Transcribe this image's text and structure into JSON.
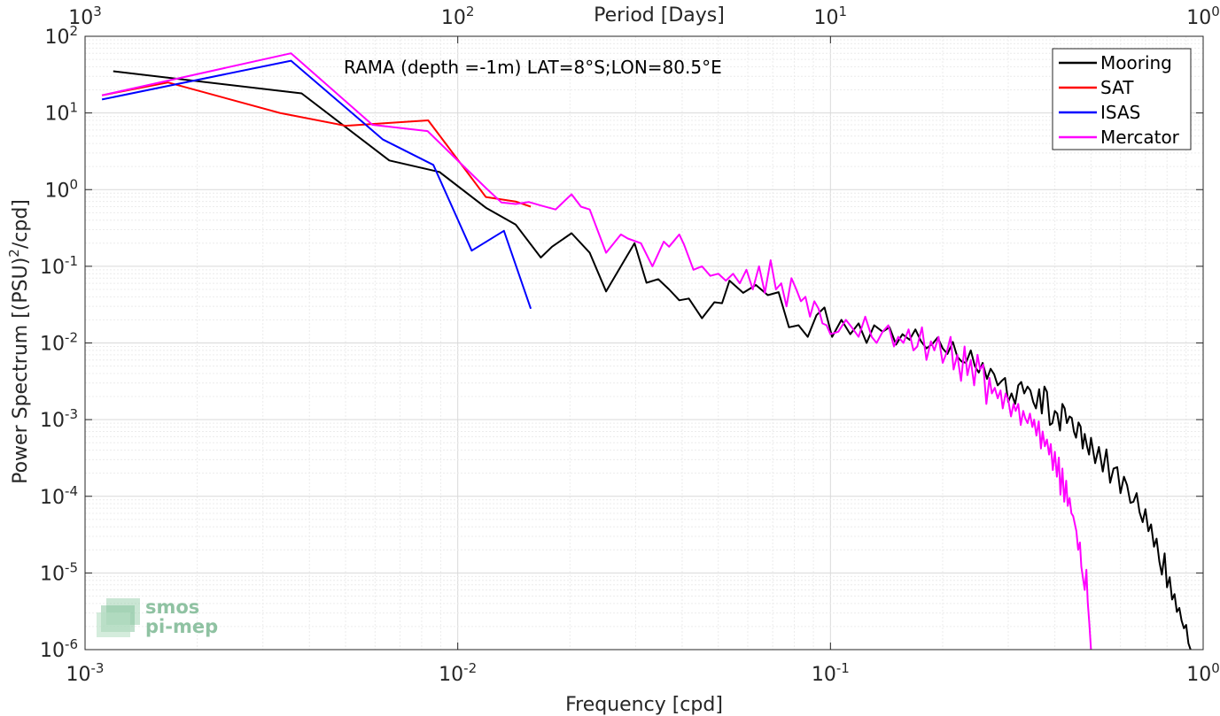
{
  "chart_data": {
    "type": "line",
    "xscale": "log",
    "yscale": "log",
    "xlim": [
      0.001,
      1
    ],
    "ylim": [
      1e-06,
      100
    ],
    "grid": true,
    "minor_grid": true,
    "xlabel": "Frequency [cpd]",
    "ylabel_prefix": "Power Spectrum [(PSU)",
    "ylabel_sup": "2",
    "ylabel_suffix": "/cpd]",
    "top_axis": {
      "label": "Period [Days]",
      "ticks": [
        {
          "base": "10",
          "exp": "3",
          "at_x": 0.001
        },
        {
          "base": "10",
          "exp": "2",
          "at_x": 0.01
        },
        {
          "base": "10",
          "exp": "1",
          "at_x": 0.1
        },
        {
          "base": "10",
          "exp": "0",
          "at_x": 1
        }
      ]
    },
    "x_ticks": [
      {
        "base": "10",
        "exp": "-3",
        "value": 0.001
      },
      {
        "base": "10",
        "exp": "-2",
        "value": 0.01
      },
      {
        "base": "10",
        "exp": "-1",
        "value": 0.1
      },
      {
        "base": "10",
        "exp": "0",
        "value": 1
      }
    ],
    "y_ticks": [
      {
        "base": "10",
        "exp": "2",
        "value": 100
      },
      {
        "base": "10",
        "exp": "1",
        "value": 10
      },
      {
        "base": "10",
        "exp": "0",
        "value": 1
      },
      {
        "base": "10",
        "exp": "-1",
        "value": 0.1
      },
      {
        "base": "10",
        "exp": "-2",
        "value": 0.01
      },
      {
        "base": "10",
        "exp": "-3",
        "value": 0.001
      },
      {
        "base": "10",
        "exp": "-4",
        "value": 0.0001
      },
      {
        "base": "10",
        "exp": "-5",
        "value": 1e-05
      },
      {
        "base": "10",
        "exp": "-6",
        "value": 1e-06
      }
    ],
    "annotation": "RAMA (depth =-1m) LAT=8°S;LON=80.5°E",
    "legend_position": "top-right",
    "series": [
      {
        "name": "Mooring",
        "color": "#000000",
        "x": [
          0.00119,
          0.00381,
          0.00655,
          0.00893,
          0.0119,
          0.0143,
          0.0167,
          0.0179,
          0.0202,
          0.0226,
          0.025,
          0.0274,
          0.0298,
          0.0321,
          0.0345,
          0.0369,
          0.0393,
          0.0417,
          0.0452,
          0.0488,
          0.0512,
          0.0536,
          0.0583,
          0.0631,
          0.0679,
          0.0726,
          0.0774,
          0.0821,
          0.0869,
          0.0917,
          0.0964,
          0.101,
          0.107,
          0.113,
          0.119,
          0.125,
          0.131,
          0.138,
          0.144,
          0.15,
          0.156,
          0.163,
          0.169,
          0.175,
          0.181,
          0.188,
          0.194,
          0.2,
          0.206,
          0.213,
          0.219,
          0.225,
          0.231,
          0.238,
          0.244,
          0.25,
          0.256,
          0.263,
          0.269,
          0.275,
          0.281,
          0.288,
          0.294,
          0.3,
          0.306,
          0.313,
          0.319,
          0.325,
          0.331,
          0.338,
          0.344,
          0.35,
          0.356,
          0.363,
          0.369,
          0.375,
          0.381,
          0.388,
          0.394,
          0.4,
          0.406,
          0.413,
          0.419,
          0.425,
          0.431,
          0.438,
          0.444,
          0.45,
          0.456,
          0.463,
          0.469,
          0.475,
          0.481,
          0.488,
          0.494,
          0.5,
          0.513,
          0.525,
          0.538,
          0.55,
          0.563,
          0.575,
          0.588,
          0.6,
          0.613,
          0.625,
          0.638,
          0.65,
          0.663,
          0.675,
          0.688,
          0.7,
          0.713,
          0.725,
          0.738,
          0.75,
          0.763,
          0.775,
          0.788,
          0.8,
          0.813,
          0.825,
          0.838,
          0.85,
          0.863,
          0.875,
          0.888,
          0.9,
          0.913,
          0.925
        ],
        "y": [
          35,
          18,
          2.4,
          1.7,
          0.58,
          0.35,
          0.13,
          0.18,
          0.27,
          0.15,
          0.047,
          0.1,
          0.2,
          0.061,
          0.068,
          0.05,
          0.036,
          0.038,
          0.021,
          0.034,
          0.033,
          0.065,
          0.045,
          0.057,
          0.042,
          0.046,
          0.016,
          0.017,
          0.012,
          0.023,
          0.029,
          0.012,
          0.02,
          0.013,
          0.018,
          0.01,
          0.017,
          0.014,
          0.016,
          0.0095,
          0.013,
          0.011,
          0.015,
          0.0105,
          0.0085,
          0.0098,
          0.0118,
          0.0085,
          0.0072,
          0.0103,
          0.0066,
          0.0057,
          0.0055,
          0.008,
          0.005,
          0.0041,
          0.0055,
          0.0034,
          0.0046,
          0.0039,
          0.0028,
          0.0032,
          0.0035,
          0.0017,
          0.0022,
          0.0016,
          0.0028,
          0.0031,
          0.0022,
          0.0027,
          0.0024,
          0.0017,
          0.0014,
          0.0025,
          0.0012,
          0.0027,
          0.0023,
          0.00085,
          0.0009,
          0.0013,
          0.0012,
          0.00072,
          0.0016,
          0.0014,
          0.0009,
          0.0011,
          0.00105,
          0.0007,
          0.00058,
          0.00092,
          0.00081,
          0.00042,
          0.00065,
          0.00045,
          0.00035,
          0.00058,
          0.00027,
          0.00044,
          0.00021,
          0.00041,
          0.00015,
          0.00023,
          0.00024,
          0.00011,
          0.00018,
          0.00014,
          8.2e-05,
          8.5e-05,
          0.00011,
          6.2e-05,
          4.6e-05,
          6.8e-05,
          3.5e-05,
          4.3e-05,
          2.2e-05,
          2.8e-05,
          1.4e-05,
          9.5e-06,
          1.8e-05,
          6.5e-06,
          8.8e-06,
          4.5e-06,
          5.3e-06,
          3.1e-06,
          3.5e-06,
          2.4e-06,
          1.9e-06,
          2.1e-06,
          1.2e-06,
          1e-06
        ]
      },
      {
        "name": "SAT",
        "color": "#ff0000",
        "x": [
          0.00111,
          0.00167,
          0.00333,
          0.005,
          0.00833,
          0.0119,
          0.0143,
          0.0157
        ],
        "y": [
          17,
          25,
          10,
          6.8,
          8,
          0.8,
          0.7,
          0.6
        ]
      },
      {
        "name": "ISAS",
        "color": "#0000ff",
        "x": [
          0.00111,
          0.00357,
          0.0063,
          0.0086,
          0.0109,
          0.0133,
          0.0157
        ],
        "y": [
          15,
          48,
          4.5,
          2.1,
          0.16,
          0.29,
          0.028
        ]
      },
      {
        "name": "Mercator",
        "color": "#ff00ff",
        "x": [
          0.00111,
          0.00357,
          0.0059,
          0.0083,
          0.0119,
          0.0131,
          0.0143,
          0.0155,
          0.0167,
          0.0183,
          0.0202,
          0.0214,
          0.0226,
          0.025,
          0.0274,
          0.0286,
          0.031,
          0.0333,
          0.0357,
          0.0369,
          0.0393,
          0.0405,
          0.0429,
          0.0452,
          0.0476,
          0.05,
          0.0524,
          0.0548,
          0.0571,
          0.0595,
          0.0619,
          0.0643,
          0.0667,
          0.0691,
          0.0714,
          0.0738,
          0.0762,
          0.0786,
          0.081,
          0.0833,
          0.0857,
          0.0881,
          0.0905,
          0.0929,
          0.0952,
          0.0976,
          0.1,
          0.105,
          0.11,
          0.114,
          0.119,
          0.124,
          0.129,
          0.133,
          0.138,
          0.143,
          0.148,
          0.152,
          0.157,
          0.162,
          0.167,
          0.171,
          0.176,
          0.181,
          0.186,
          0.19,
          0.195,
          0.2,
          0.205,
          0.21,
          0.214,
          0.219,
          0.224,
          0.229,
          0.233,
          0.238,
          0.243,
          0.248,
          0.252,
          0.257,
          0.262,
          0.267,
          0.271,
          0.276,
          0.281,
          0.286,
          0.29,
          0.295,
          0.3,
          0.305,
          0.31,
          0.314,
          0.319,
          0.324,
          0.329,
          0.333,
          0.338,
          0.343,
          0.348,
          0.352,
          0.357,
          0.362,
          0.367,
          0.371,
          0.376,
          0.381,
          0.386,
          0.39,
          0.395,
          0.4,
          0.405,
          0.41,
          0.414,
          0.419,
          0.424,
          0.429,
          0.433,
          0.438,
          0.443,
          0.448,
          0.452,
          0.457,
          0.462,
          0.467,
          0.471,
          0.476,
          0.481,
          0.486,
          0.49,
          0.495,
          0.5
        ],
        "y": [
          17,
          60,
          7,
          5.8,
          1.05,
          0.68,
          0.65,
          0.69,
          0.62,
          0.55,
          0.87,
          0.6,
          0.55,
          0.15,
          0.26,
          0.23,
          0.2,
          0.1,
          0.21,
          0.18,
          0.26,
          0.19,
          0.09,
          0.1,
          0.075,
          0.08,
          0.065,
          0.08,
          0.06,
          0.09,
          0.05,
          0.1,
          0.045,
          0.12,
          0.05,
          0.06,
          0.03,
          0.07,
          0.05,
          0.035,
          0.04,
          0.022,
          0.035,
          0.028,
          0.018,
          0.017,
          0.013,
          0.014,
          0.02,
          0.016,
          0.012,
          0.022,
          0.012,
          0.01,
          0.014,
          0.017,
          0.009,
          0.012,
          0.01,
          0.015,
          0.008,
          0.009,
          0.016,
          0.006,
          0.0105,
          0.008,
          0.012,
          0.0055,
          0.0075,
          0.012,
          0.0045,
          0.007,
          0.0032,
          0.009,
          0.0038,
          0.006,
          0.0028,
          0.007,
          0.0045,
          0.0052,
          0.0016,
          0.0035,
          0.0022,
          0.0026,
          0.0019,
          0.0024,
          0.0014,
          0.0022,
          0.0018,
          0.0011,
          0.0016,
          0.0013,
          0.0016,
          0.00085,
          0.0013,
          0.00105,
          0.0009,
          0.0012,
          0.0008,
          0.001,
          0.00062,
          0.00095,
          0.00042,
          0.0007,
          0.00045,
          0.00055,
          0.00035,
          0.00048,
          0.00022,
          0.00038,
          0.00018,
          0.00032,
          0.000105,
          0.00023,
          8.5e-05,
          0.00016,
          7.5e-05,
          9.5e-05,
          6e-05,
          5.5e-05,
          4.5e-05,
          3.5e-05,
          2e-05,
          2.5e-05,
          1.2e-05,
          8.5e-06,
          6e-06,
          1.1e-05,
          4.2e-06,
          2.2e-06,
          1e-06
        ]
      }
    ]
  },
  "logo": {
    "line1": "smos",
    "line2": "pi-mep"
  }
}
